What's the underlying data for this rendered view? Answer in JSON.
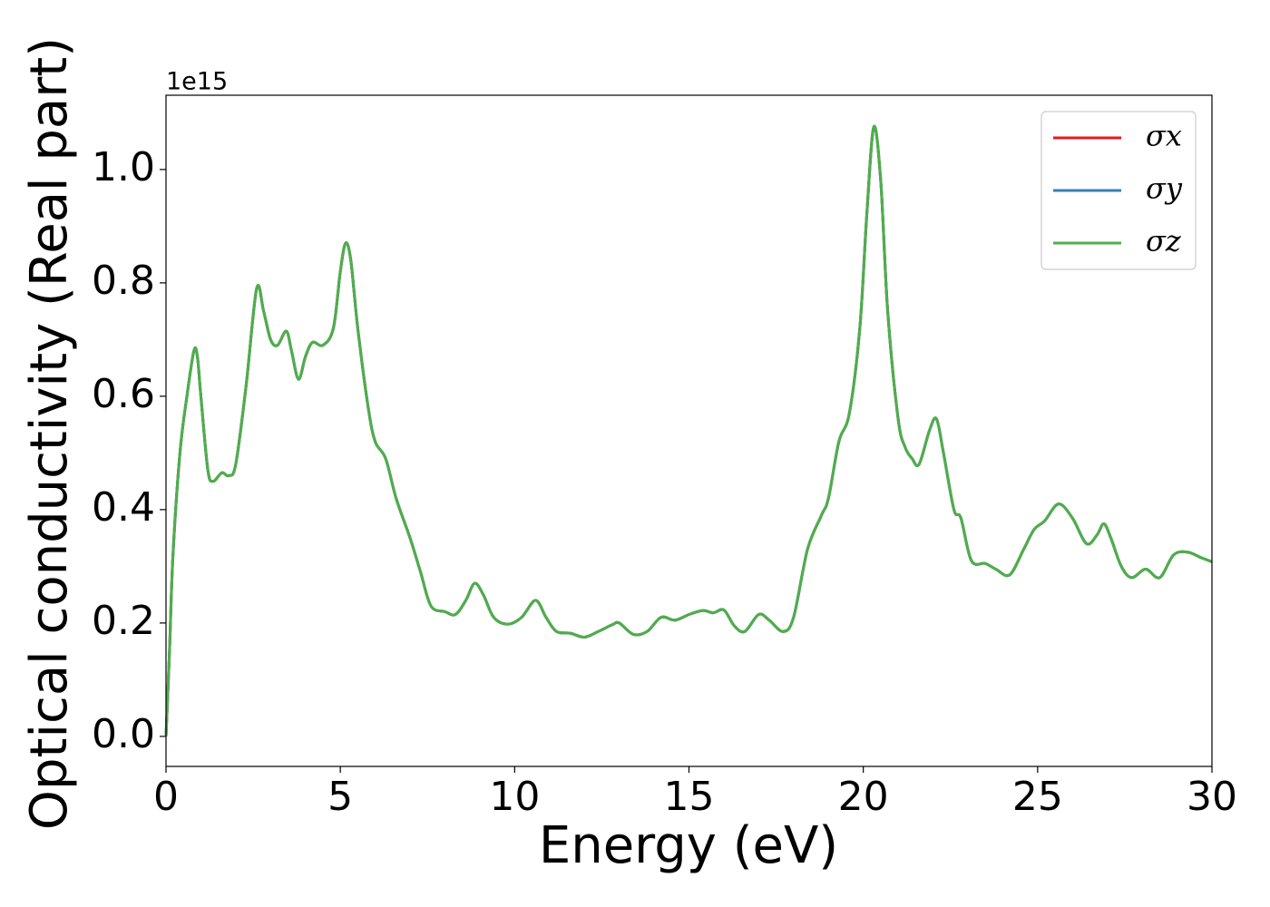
{
  "chart_data": {
    "type": "line",
    "x_label": "Energy (eV)",
    "y_label": "Optical conductivity (Real part)",
    "y_offset_label": "1e15",
    "xlim": [
      0,
      30
    ],
    "ylim": [
      -0.053,
      1.131
    ],
    "xticks": [
      0,
      5,
      10,
      15,
      20,
      25,
      30
    ],
    "yticks": [
      {
        "value": 0,
        "label": "0.0"
      },
      0.2,
      0.4,
      0.6,
      0.8,
      {
        "value": 1,
        "label": "1.0"
      }
    ],
    "legend": "upper right",
    "x": [
      0,
      0.1,
      0.2,
      0.4,
      0.6,
      0.8,
      0.9,
      1.0,
      1.2,
      1.35,
      1.6,
      1.8,
      2.0,
      2.3,
      2.6,
      2.8,
      3.0,
      3.2,
      3.45,
      3.6,
      3.8,
      4.0,
      4.2,
      4.5,
      4.8,
      5.0,
      5.15,
      5.3,
      5.5,
      5.8,
      6.0,
      6.3,
      6.6,
      7.0,
      7.3,
      7.6,
      8.0,
      8.3,
      8.6,
      8.85,
      9.1,
      9.4,
      9.8,
      10.2,
      10.6,
      10.9,
      11.2,
      11.6,
      12.0,
      12.4,
      12.8,
      13.0,
      13.4,
      13.8,
      14.2,
      14.6,
      15.0,
      15.4,
      15.7,
      16.0,
      16.3,
      16.6,
      17.0,
      17.3,
      17.7,
      18.0,
      18.4,
      18.8,
      19.0,
      19.3,
      19.6,
      19.9,
      20.1,
      20.3,
      20.5,
      20.7,
      21.0,
      21.2,
      21.4,
      21.6,
      21.9,
      22.1,
      22.3,
      22.6,
      22.8,
      23.1,
      23.5,
      23.8,
      24.2,
      24.6,
      24.9,
      25.2,
      25.6,
      26.0,
      26.4,
      26.7,
      26.9,
      27.1,
      27.4,
      27.7,
      28.1,
      28.5,
      28.9,
      29.3,
      29.7,
      30
    ],
    "series": [
      {
        "name": "σx",
        "color": "#e41a1c",
        "values": [
          0,
          0.15,
          0.32,
          0.5,
          0.6,
          0.68,
          0.67,
          0.6,
          0.47,
          0.45,
          0.465,
          0.46,
          0.48,
          0.62,
          0.79,
          0.75,
          0.7,
          0.69,
          0.715,
          0.68,
          0.63,
          0.67,
          0.695,
          0.69,
          0.72,
          0.82,
          0.87,
          0.84,
          0.72,
          0.58,
          0.52,
          0.49,
          0.42,
          0.35,
          0.29,
          0.23,
          0.22,
          0.215,
          0.24,
          0.27,
          0.25,
          0.21,
          0.198,
          0.21,
          0.24,
          0.21,
          0.185,
          0.182,
          0.175,
          0.185,
          0.197,
          0.2,
          0.18,
          0.185,
          0.21,
          0.205,
          0.215,
          0.222,
          0.218,
          0.223,
          0.195,
          0.185,
          0.215,
          0.205,
          0.185,
          0.21,
          0.33,
          0.39,
          0.42,
          0.52,
          0.57,
          0.72,
          0.92,
          1.075,
          0.98,
          0.75,
          0.56,
          0.51,
          0.49,
          0.48,
          0.54,
          0.56,
          0.5,
          0.4,
          0.385,
          0.31,
          0.305,
          0.295,
          0.285,
          0.33,
          0.365,
          0.38,
          0.41,
          0.385,
          0.34,
          0.355,
          0.375,
          0.35,
          0.3,
          0.28,
          0.295,
          0.28,
          0.32,
          0.325,
          0.315,
          0.308
        ]
      },
      {
        "name": "σy",
        "color": "#377eb8",
        "values": [
          0,
          0.15,
          0.32,
          0.5,
          0.6,
          0.68,
          0.67,
          0.6,
          0.47,
          0.45,
          0.465,
          0.46,
          0.48,
          0.62,
          0.79,
          0.75,
          0.7,
          0.69,
          0.715,
          0.68,
          0.63,
          0.67,
          0.695,
          0.69,
          0.72,
          0.82,
          0.87,
          0.84,
          0.72,
          0.58,
          0.52,
          0.49,
          0.42,
          0.35,
          0.29,
          0.23,
          0.22,
          0.215,
          0.24,
          0.27,
          0.25,
          0.21,
          0.198,
          0.21,
          0.24,
          0.21,
          0.185,
          0.182,
          0.175,
          0.185,
          0.197,
          0.2,
          0.18,
          0.185,
          0.21,
          0.205,
          0.215,
          0.222,
          0.218,
          0.223,
          0.195,
          0.185,
          0.215,
          0.205,
          0.185,
          0.21,
          0.33,
          0.39,
          0.42,
          0.52,
          0.57,
          0.72,
          0.92,
          1.075,
          0.98,
          0.75,
          0.56,
          0.51,
          0.49,
          0.48,
          0.54,
          0.56,
          0.5,
          0.4,
          0.385,
          0.31,
          0.305,
          0.295,
          0.285,
          0.33,
          0.365,
          0.38,
          0.41,
          0.385,
          0.34,
          0.355,
          0.375,
          0.35,
          0.3,
          0.28,
          0.295,
          0.28,
          0.32,
          0.325,
          0.315,
          0.308
        ]
      },
      {
        "name": "σz",
        "color": "#4daf4a",
        "values": [
          0,
          0.15,
          0.32,
          0.5,
          0.6,
          0.68,
          0.67,
          0.6,
          0.47,
          0.45,
          0.465,
          0.46,
          0.48,
          0.62,
          0.79,
          0.75,
          0.7,
          0.69,
          0.715,
          0.68,
          0.63,
          0.67,
          0.695,
          0.69,
          0.72,
          0.82,
          0.87,
          0.84,
          0.72,
          0.58,
          0.52,
          0.49,
          0.42,
          0.35,
          0.29,
          0.23,
          0.22,
          0.215,
          0.24,
          0.27,
          0.25,
          0.21,
          0.198,
          0.21,
          0.24,
          0.21,
          0.185,
          0.182,
          0.175,
          0.185,
          0.197,
          0.2,
          0.18,
          0.185,
          0.21,
          0.205,
          0.215,
          0.222,
          0.218,
          0.223,
          0.195,
          0.185,
          0.215,
          0.205,
          0.185,
          0.21,
          0.33,
          0.39,
          0.42,
          0.52,
          0.57,
          0.72,
          0.92,
          1.075,
          0.98,
          0.75,
          0.56,
          0.51,
          0.49,
          0.48,
          0.54,
          0.56,
          0.5,
          0.4,
          0.385,
          0.31,
          0.305,
          0.295,
          0.285,
          0.33,
          0.365,
          0.38,
          0.41,
          0.385,
          0.34,
          0.355,
          0.375,
          0.35,
          0.3,
          0.28,
          0.295,
          0.28,
          0.32,
          0.325,
          0.315,
          0.308
        ]
      }
    ]
  }
}
